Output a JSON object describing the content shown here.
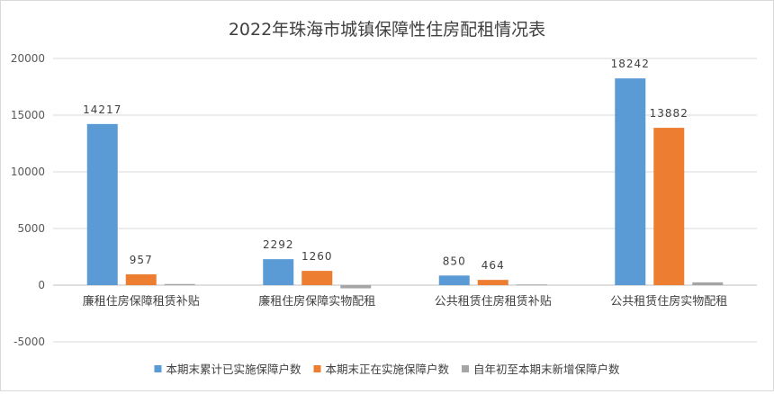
{
  "chart_data": {
    "type": "bar",
    "title": "2022年珠海市城镇保障性住房配租情况表",
    "categories": [
      "廉租住房保障租赁补贴",
      "廉租住房保障实物配租",
      "公共租赁住房租赁补贴",
      "公共租赁住房实物配租"
    ],
    "series": [
      {
        "name": "本期末累计已实施保障户数",
        "color": "#5b9bd5",
        "values": [
          14217,
          2292,
          850,
          18242
        ],
        "labels": [
          "14217",
          "2292",
          "850",
          "18242"
        ]
      },
      {
        "name": "本期末正在实施保障户数",
        "color": "#ed7d31",
        "values": [
          957,
          1260,
          464,
          13882
        ],
        "labels": [
          "957",
          "1260",
          "464",
          "13882"
        ]
      },
      {
        "name": "自年初至本期末新增保障户数",
        "color": "#a5a5a5",
        "values": [
          100,
          -280,
          60,
          250
        ],
        "labels": [
          "",
          "",
          "",
          ""
        ]
      }
    ],
    "ylim": [
      -5000,
      20000
    ],
    "yticks": [
      -5000,
      0,
      5000,
      10000,
      15000,
      20000
    ],
    "ytick_labels": [
      "-5000",
      "0",
      "5000",
      "10000",
      "15000",
      "20000"
    ],
    "grid": true,
    "legend_position": "bottom"
  }
}
